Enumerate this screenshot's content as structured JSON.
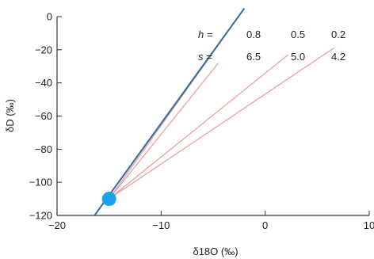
{
  "chart_data": {
    "type": "line",
    "title": "",
    "xlabel": "δ18O (‰)",
    "ylabel": "δD (‰)",
    "xlim": [
      -20,
      10
    ],
    "ylim": [
      -120,
      0
    ],
    "x_ticks": [
      -20,
      -10,
      0,
      10
    ],
    "y_ticks": [
      0,
      -20,
      -40,
      -60,
      -80,
      -100,
      -120
    ],
    "x_tick_labels": [
      "−20",
      "−10",
      "0",
      "10"
    ],
    "y_tick_labels": [
      "0",
      "−20",
      "−40",
      "−60",
      "−80",
      "−100",
      "−120"
    ],
    "grid": false,
    "colors": {
      "meteoric_line": "#2e6f9e",
      "evap_lines": "#e9a0a0",
      "origin_point": "#1aa3e8",
      "axis": "#333333"
    },
    "meteoric_line": {
      "points": [
        [
          -16.4,
          -120
        ],
        [
          -2.0,
          5
        ]
      ]
    },
    "origin_point": {
      "x": -15,
      "y": -110
    },
    "series": [
      {
        "values": [
          [
            -15,
            -110
          ],
          [
            -2.0,
            5
          ]
        ]
      },
      {
        "values": [
          [
            -15,
            -110
          ],
          [
            -4.5,
            -28
          ]
        ]
      },
      {
        "values": [
          [
            -15,
            -110
          ],
          [
            2.2,
            -23
          ]
        ]
      },
      {
        "values": [
          [
            -15,
            -110
          ],
          [
            6.6,
            -19
          ]
        ]
      }
    ],
    "annotations": {
      "h_label": "h =",
      "s_label": "s =",
      "h_values": [
        "0.8",
        "0.5",
        "0.2"
      ],
      "s_values": [
        "6.5",
        "5.0",
        "4.2"
      ]
    }
  }
}
